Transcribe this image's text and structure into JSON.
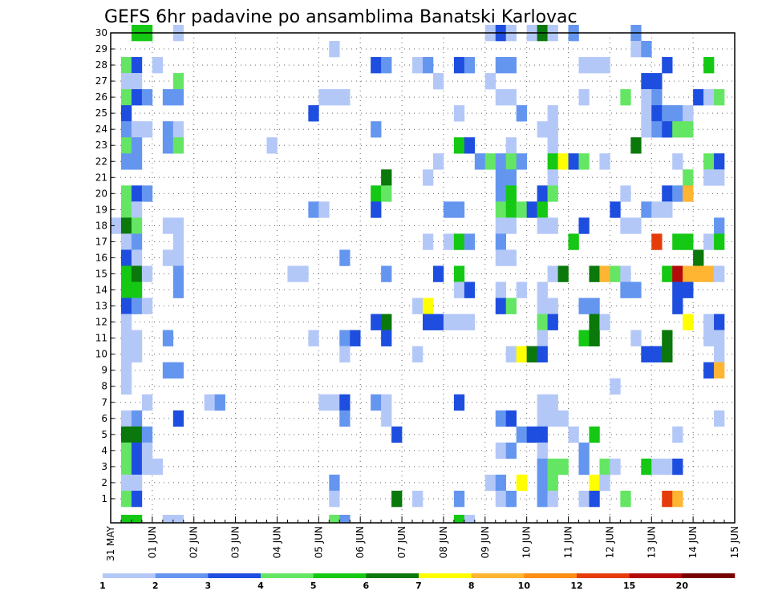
{
  "chart_data": {
    "type": "heatmap",
    "title": "GEFS 6hr padavine po ansamblima Banatski Karlovac",
    "y_members": [
      "1",
      "2",
      "3",
      "4",
      "5",
      "6",
      "7",
      "8",
      "9",
      "10",
      "11",
      "12",
      "13",
      "14",
      "15",
      "16",
      "17",
      "18",
      "19",
      "20",
      "21",
      "22",
      "23",
      "24",
      "25",
      "26",
      "27",
      "28",
      "29",
      "30"
    ],
    "x_labels": [
      "31 MAY",
      "01 JUN",
      "02 JUN",
      "03 JUN",
      "04 JUN",
      "05 JUN",
      "06 JUN",
      "07 JUN",
      "08 JUN",
      "09 JUN",
      "10 JUN",
      "11 JUN",
      "12 JUN",
      "13 JUN",
      "14 JUN",
      "15 JUN"
    ],
    "x_steps_per_day": 4,
    "colorbar": {
      "labels": [
        "1",
        "2",
        "3",
        "4",
        "5",
        "6",
        "7",
        "8",
        "10",
        "12",
        "15",
        "20"
      ],
      "colors": [
        "#b4c8f8",
        "#6496f0",
        "#1e4ee0",
        "#64e664",
        "#14c814",
        "#0a780a",
        "#ffff00",
        "#ffb432",
        "#ff8c14",
        "#e63c0a",
        "#b40a0a",
        "#780000"
      ]
    },
    "cells": [
      [
        30,
        2,
        5
      ],
      [
        30,
        3,
        5
      ],
      [
        30,
        6,
        1
      ],
      [
        30,
        36,
        1
      ],
      [
        30,
        37,
        3
      ],
      [
        30,
        38,
        1
      ],
      [
        30,
        40,
        1
      ],
      [
        30,
        41,
        6
      ],
      [
        30,
        42,
        1
      ],
      [
        30,
        44,
        2
      ],
      [
        30,
        50,
        2
      ],
      [
        29,
        21,
        1
      ],
      [
        29,
        50,
        1
      ],
      [
        29,
        51,
        2
      ],
      [
        28,
        1,
        4
      ],
      [
        28,
        2,
        3
      ],
      [
        28,
        4,
        1
      ],
      [
        28,
        25,
        3
      ],
      [
        28,
        26,
        2
      ],
      [
        28,
        29,
        1
      ],
      [
        28,
        30,
        2
      ],
      [
        28,
        33,
        3
      ],
      [
        28,
        34,
        2
      ],
      [
        28,
        37,
        2
      ],
      [
        28,
        38,
        2
      ],
      [
        28,
        45,
        1
      ],
      [
        28,
        46,
        1
      ],
      [
        28,
        47,
        1
      ],
      [
        28,
        53,
        3
      ],
      [
        28,
        57,
        5
      ],
      [
        27,
        1,
        1
      ],
      [
        27,
        2,
        1
      ],
      [
        27,
        6,
        4
      ],
      [
        27,
        31,
        1
      ],
      [
        27,
        36,
        1
      ],
      [
        27,
        51,
        3
      ],
      [
        27,
        52,
        3
      ],
      [
        26,
        1,
        4
      ],
      [
        26,
        2,
        3
      ],
      [
        26,
        3,
        2
      ],
      [
        26,
        5,
        2
      ],
      [
        26,
        6,
        2
      ],
      [
        26,
        20,
        1
      ],
      [
        26,
        21,
        1
      ],
      [
        26,
        22,
        1
      ],
      [
        26,
        37,
        1
      ],
      [
        26,
        38,
        1
      ],
      [
        26,
        45,
        1
      ],
      [
        26,
        49,
        4
      ],
      [
        26,
        51,
        1
      ],
      [
        26,
        52,
        2
      ],
      [
        26,
        56,
        3
      ],
      [
        26,
        57,
        1
      ],
      [
        26,
        58,
        4
      ],
      [
        25,
        1,
        3
      ],
      [
        25,
        19,
        3
      ],
      [
        25,
        33,
        1
      ],
      [
        25,
        39,
        2
      ],
      [
        25,
        42,
        1
      ],
      [
        25,
        51,
        1
      ],
      [
        25,
        52,
        3
      ],
      [
        25,
        53,
        2
      ],
      [
        25,
        54,
        2
      ],
      [
        25,
        55,
        1
      ],
      [
        24,
        1,
        2
      ],
      [
        24,
        2,
        1
      ],
      [
        24,
        3,
        1
      ],
      [
        24,
        5,
        2
      ],
      [
        24,
        6,
        1
      ],
      [
        24,
        25,
        2
      ],
      [
        24,
        41,
        1
      ],
      [
        24,
        42,
        1
      ],
      [
        24,
        51,
        1
      ],
      [
        24,
        52,
        2
      ],
      [
        24,
        53,
        3
      ],
      [
        24,
        54,
        4
      ],
      [
        24,
        55,
        4
      ],
      [
        23,
        1,
        4
      ],
      [
        23,
        2,
        2
      ],
      [
        23,
        5,
        2
      ],
      [
        23,
        6,
        4
      ],
      [
        23,
        15,
        1
      ],
      [
        23,
        33,
        5
      ],
      [
        23,
        34,
        3
      ],
      [
        23,
        38,
        1
      ],
      [
        23,
        42,
        1
      ],
      [
        23,
        50,
        6
      ],
      [
        22,
        1,
        2
      ],
      [
        22,
        2,
        2
      ],
      [
        22,
        31,
        1
      ],
      [
        22,
        35,
        2
      ],
      [
        22,
        36,
        4
      ],
      [
        22,
        37,
        2
      ],
      [
        22,
        38,
        4
      ],
      [
        22,
        39,
        2
      ],
      [
        22,
        42,
        5
      ],
      [
        22,
        43,
        7
      ],
      [
        22,
        44,
        3
      ],
      [
        22,
        45,
        4
      ],
      [
        22,
        47,
        1
      ],
      [
        22,
        54,
        1
      ],
      [
        22,
        57,
        4
      ],
      [
        22,
        58,
        3
      ],
      [
        21,
        26,
        6
      ],
      [
        21,
        30,
        1
      ],
      [
        21,
        37,
        2
      ],
      [
        21,
        38,
        2
      ],
      [
        21,
        42,
        1
      ],
      [
        21,
        55,
        4
      ],
      [
        21,
        57,
        1
      ],
      [
        21,
        58,
        1
      ],
      [
        20,
        1,
        4
      ],
      [
        20,
        2,
        3
      ],
      [
        20,
        3,
        2
      ],
      [
        20,
        25,
        5
      ],
      [
        20,
        26,
        4
      ],
      [
        20,
        37,
        2
      ],
      [
        20,
        38,
        5
      ],
      [
        20,
        41,
        3
      ],
      [
        20,
        42,
        4
      ],
      [
        20,
        49,
        1
      ],
      [
        20,
        53,
        3
      ],
      [
        20,
        54,
        2
      ],
      [
        20,
        55,
        8
      ],
      [
        19,
        1,
        4
      ],
      [
        19,
        2,
        1
      ],
      [
        19,
        19,
        2
      ],
      [
        19,
        20,
        1
      ],
      [
        19,
        25,
        3
      ],
      [
        19,
        32,
        2
      ],
      [
        19,
        33,
        2
      ],
      [
        19,
        37,
        4
      ],
      [
        19,
        38,
        5
      ],
      [
        19,
        39,
        4
      ],
      [
        19,
        40,
        3
      ],
      [
        19,
        41,
        5
      ],
      [
        19,
        48,
        3
      ],
      [
        19,
        51,
        2
      ],
      [
        19,
        52,
        1
      ],
      [
        19,
        53,
        1
      ],
      [
        18,
        0,
        1
      ],
      [
        18,
        1,
        6
      ],
      [
        18,
        2,
        4
      ],
      [
        18,
        5,
        1
      ],
      [
        18,
        6,
        1
      ],
      [
        18,
        37,
        1
      ],
      [
        18,
        38,
        1
      ],
      [
        18,
        41,
        1
      ],
      [
        18,
        42,
        1
      ],
      [
        18,
        45,
        3
      ],
      [
        18,
        49,
        1
      ],
      [
        18,
        50,
        1
      ],
      [
        18,
        58,
        2
      ],
      [
        17,
        1,
        1
      ],
      [
        17,
        2,
        2
      ],
      [
        17,
        6,
        1
      ],
      [
        17,
        30,
        1
      ],
      [
        17,
        32,
        1
      ],
      [
        17,
        33,
        5
      ],
      [
        17,
        34,
        2
      ],
      [
        17,
        37,
        2
      ],
      [
        17,
        44,
        5
      ],
      [
        17,
        52,
        10
      ],
      [
        17,
        54,
        5
      ],
      [
        17,
        55,
        5
      ],
      [
        17,
        57,
        1
      ],
      [
        17,
        58,
        5
      ],
      [
        16,
        1,
        3
      ],
      [
        16,
        2,
        1
      ],
      [
        16,
        5,
        1
      ],
      [
        16,
        6,
        1
      ],
      [
        16,
        22,
        2
      ],
      [
        16,
        37,
        1
      ],
      [
        16,
        38,
        1
      ],
      [
        16,
        56,
        6
      ],
      [
        15,
        1,
        5
      ],
      [
        15,
        2,
        6
      ],
      [
        15,
        3,
        1
      ],
      [
        15,
        6,
        2
      ],
      [
        15,
        17,
        1
      ],
      [
        15,
        18,
        1
      ],
      [
        15,
        26,
        2
      ],
      [
        15,
        31,
        3
      ],
      [
        15,
        33,
        5
      ],
      [
        15,
        42,
        1
      ],
      [
        15,
        43,
        6
      ],
      [
        15,
        46,
        6
      ],
      [
        15,
        47,
        8
      ],
      [
        15,
        48,
        4
      ],
      [
        15,
        49,
        1
      ],
      [
        15,
        53,
        5
      ],
      [
        15,
        54,
        11
      ],
      [
        15,
        55,
        8
      ],
      [
        15,
        56,
        8
      ],
      [
        15,
        57,
        8
      ],
      [
        15,
        58,
        1
      ],
      [
        14,
        1,
        5
      ],
      [
        14,
        2,
        5
      ],
      [
        14,
        6,
        2
      ],
      [
        14,
        33,
        1
      ],
      [
        14,
        34,
        3
      ],
      [
        14,
        37,
        1
      ],
      [
        14,
        39,
        1
      ],
      [
        14,
        41,
        1
      ],
      [
        14,
        49,
        2
      ],
      [
        14,
        50,
        2
      ],
      [
        14,
        54,
        3
      ],
      [
        14,
        55,
        3
      ],
      [
        13,
        1,
        3
      ],
      [
        13,
        2,
        2
      ],
      [
        13,
        3,
        1
      ],
      [
        13,
        29,
        1
      ],
      [
        13,
        30,
        7
      ],
      [
        13,
        37,
        3
      ],
      [
        13,
        38,
        4
      ],
      [
        13,
        41,
        1
      ],
      [
        13,
        42,
        1
      ],
      [
        13,
        45,
        2
      ],
      [
        13,
        46,
        2
      ],
      [
        13,
        54,
        3
      ],
      [
        12,
        1,
        1
      ],
      [
        12,
        25,
        3
      ],
      [
        12,
        26,
        6
      ],
      [
        12,
        30,
        3
      ],
      [
        12,
        31,
        3
      ],
      [
        12,
        32,
        1
      ],
      [
        12,
        33,
        1
      ],
      [
        12,
        34,
        1
      ],
      [
        12,
        41,
        4
      ],
      [
        12,
        42,
        3
      ],
      [
        12,
        46,
        6
      ],
      [
        12,
        47,
        1
      ],
      [
        12,
        55,
        7
      ],
      [
        12,
        57,
        1
      ],
      [
        12,
        58,
        3
      ],
      [
        11,
        1,
        1
      ],
      [
        11,
        2,
        1
      ],
      [
        11,
        5,
        2
      ],
      [
        11,
        19,
        1
      ],
      [
        11,
        22,
        2
      ],
      [
        11,
        23,
        3
      ],
      [
        11,
        26,
        3
      ],
      [
        11,
        41,
        1
      ],
      [
        11,
        45,
        5
      ],
      [
        11,
        46,
        6
      ],
      [
        11,
        50,
        1
      ],
      [
        11,
        53,
        6
      ],
      [
        11,
        57,
        1
      ],
      [
        11,
        58,
        1
      ],
      [
        10,
        1,
        1
      ],
      [
        10,
        2,
        1
      ],
      [
        10,
        22,
        1
      ],
      [
        10,
        29,
        1
      ],
      [
        10,
        38,
        1
      ],
      [
        10,
        39,
        7
      ],
      [
        10,
        40,
        6
      ],
      [
        10,
        41,
        3
      ],
      [
        10,
        51,
        3
      ],
      [
        10,
        52,
        3
      ],
      [
        10,
        53,
        6
      ],
      [
        10,
        58,
        1
      ],
      [
        9,
        1,
        1
      ],
      [
        9,
        5,
        2
      ],
      [
        9,
        6,
        2
      ],
      [
        9,
        57,
        3
      ],
      [
        9,
        58,
        8
      ],
      [
        8,
        1,
        1
      ],
      [
        8,
        48,
        1
      ],
      [
        7,
        3,
        1
      ],
      [
        7,
        9,
        1
      ],
      [
        7,
        10,
        2
      ],
      [
        7,
        20,
        1
      ],
      [
        7,
        21,
        1
      ],
      [
        7,
        22,
        3
      ],
      [
        7,
        25,
        2
      ],
      [
        7,
        26,
        1
      ],
      [
        7,
        33,
        3
      ],
      [
        7,
        41,
        1
      ],
      [
        7,
        42,
        1
      ],
      [
        6,
        1,
        1
      ],
      [
        6,
        2,
        2
      ],
      [
        6,
        6,
        3
      ],
      [
        6,
        22,
        2
      ],
      [
        6,
        26,
        1
      ],
      [
        6,
        37,
        2
      ],
      [
        6,
        38,
        3
      ],
      [
        6,
        41,
        1
      ],
      [
        6,
        42,
        1
      ],
      [
        6,
        43,
        1
      ],
      [
        6,
        58,
        1
      ],
      [
        5,
        1,
        6
      ],
      [
        5,
        2,
        6
      ],
      [
        5,
        3,
        2
      ],
      [
        5,
        27,
        3
      ],
      [
        5,
        39,
        2
      ],
      [
        5,
        40,
        3
      ],
      [
        5,
        41,
        3
      ],
      [
        5,
        44,
        1
      ],
      [
        5,
        46,
        5
      ],
      [
        5,
        54,
        1
      ],
      [
        4,
        1,
        4
      ],
      [
        4,
        2,
        3
      ],
      [
        4,
        3,
        1
      ],
      [
        4,
        37,
        1
      ],
      [
        4,
        38,
        2
      ],
      [
        4,
        41,
        1
      ],
      [
        4,
        45,
        2
      ],
      [
        3,
        1,
        4
      ],
      [
        3,
        2,
        3
      ],
      [
        3,
        3,
        1
      ],
      [
        3,
        4,
        1
      ],
      [
        3,
        41,
        2
      ],
      [
        3,
        42,
        4
      ],
      [
        3,
        43,
        4
      ],
      [
        3,
        45,
        2
      ],
      [
        3,
        47,
        4
      ],
      [
        3,
        48,
        1
      ],
      [
        3,
        51,
        5
      ],
      [
        3,
        52,
        1
      ],
      [
        3,
        53,
        1
      ],
      [
        3,
        54,
        3
      ],
      [
        2,
        1,
        1
      ],
      [
        2,
        2,
        1
      ],
      [
        2,
        21,
        2
      ],
      [
        2,
        36,
        1
      ],
      [
        2,
        37,
        2
      ],
      [
        2,
        39,
        7
      ],
      [
        2,
        41,
        2
      ],
      [
        2,
        42,
        4
      ],
      [
        2,
        46,
        7
      ],
      [
        2,
        47,
        1
      ],
      [
        1,
        1,
        4
      ],
      [
        1,
        2,
        3
      ],
      [
        1,
        21,
        1
      ],
      [
        1,
        27,
        6
      ],
      [
        1,
        29,
        1
      ],
      [
        1,
        33,
        2
      ],
      [
        1,
        37,
        1
      ],
      [
        1,
        38,
        2
      ],
      [
        1,
        41,
        2
      ],
      [
        1,
        42,
        1
      ],
      [
        1,
        45,
        1
      ],
      [
        1,
        46,
        3
      ],
      [
        1,
        49,
        4
      ],
      [
        1,
        53,
        10
      ],
      [
        1,
        54,
        8
      ],
      [
        0,
        1,
        5
      ],
      [
        0,
        2,
        5
      ],
      [
        0,
        5,
        1
      ],
      [
        0,
        6,
        1
      ],
      [
        0,
        21,
        4
      ],
      [
        0,
        22,
        2
      ],
      [
        0,
        33,
        5
      ],
      [
        0,
        34,
        1
      ]
    ]
  }
}
